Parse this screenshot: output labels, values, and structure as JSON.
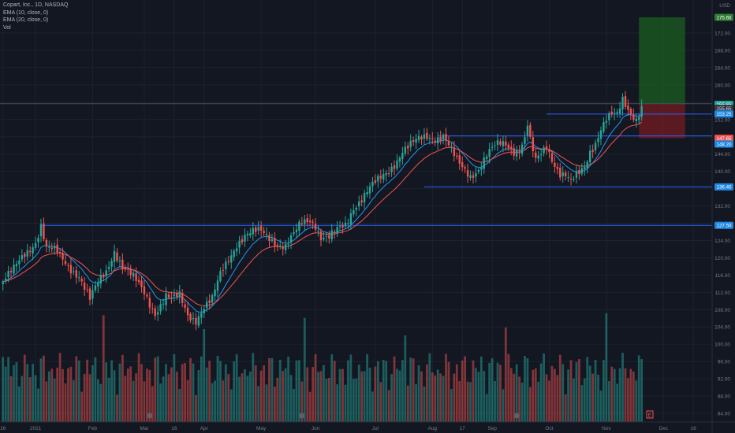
{
  "legend": {
    "symbol": "Copart, Inc., 1D, NASDAQ",
    "ema10": "EMA (10, close, 0)",
    "ema20": "EMA (20, close, 0)",
    "vol": "Vol"
  },
  "axis_currency": "USD",
  "colors": {
    "background": "#131722",
    "up": "#26a69a",
    "down": "#ef5350",
    "ema10": "#2196f3",
    "ema20": "#ef5350",
    "level_line": "#2962ff",
    "grid": "#1e222d",
    "axis_text": "#787b86"
  },
  "chart_data": {
    "type": "candlestick",
    "title": "Copart, Inc., 1D, NASDAQ",
    "ylim": [
      82,
      180
    ],
    "yticks": [
      84,
      88,
      92,
      96,
      100,
      104,
      108,
      112,
      116,
      120,
      124,
      128,
      132,
      136,
      140,
      144,
      148,
      152,
      156,
      160,
      164,
      168,
      172
    ],
    "xticks": [
      {
        "label": "16",
        "i": 0
      },
      {
        "label": "2021",
        "i": 12
      },
      {
        "label": "Feb",
        "i": 33
      },
      {
        "label": "Mar",
        "i": 52
      },
      {
        "label": "16",
        "i": 63
      },
      {
        "label": "Apr",
        "i": 74
      },
      {
        "label": "May",
        "i": 95
      },
      {
        "label": "Jun",
        "i": 115
      },
      {
        "label": "Jul",
        "i": 137
      },
      {
        "label": "Aug",
        "i": 158
      },
      {
        "label": "17",
        "i": 169
      },
      {
        "label": "Sep",
        "i": 180
      },
      {
        "label": "Oct",
        "i": 201
      },
      {
        "label": "Nov",
        "i": 222
      },
      {
        "label": "Dec",
        "i": 243
      },
      {
        "label": "16",
        "i": 254
      }
    ],
    "waypoints": [
      [
        0,
        114.5
      ],
      [
        4,
        117
      ],
      [
        8,
        121
      ],
      [
        12,
        124
      ],
      [
        14,
        127.5
      ],
      [
        16,
        122
      ],
      [
        18,
        121.5
      ],
      [
        20,
        121
      ],
      [
        23,
        119
      ],
      [
        28,
        116
      ],
      [
        32,
        110
      ],
      [
        35,
        114
      ],
      [
        38,
        117
      ],
      [
        41,
        122
      ],
      [
        44,
        118
      ],
      [
        48,
        115
      ],
      [
        52,
        112
      ],
      [
        56,
        107.5
      ],
      [
        60,
        111
      ],
      [
        62,
        110
      ],
      [
        65,
        111
      ],
      [
        68,
        107
      ],
      [
        71,
        106
      ],
      [
        74,
        108.5
      ],
      [
        77,
        110
      ],
      [
        80,
        116
      ],
      [
        83,
        120
      ],
      [
        86,
        123.5
      ],
      [
        89,
        125
      ],
      [
        92,
        125.5
      ],
      [
        95,
        126
      ],
      [
        98,
        125
      ],
      [
        101,
        123.5
      ],
      [
        104,
        122.5
      ],
      [
        107,
        125
      ],
      [
        110,
        128
      ],
      [
        113,
        129
      ],
      [
        115,
        128
      ],
      [
        117,
        125
      ],
      [
        120,
        124.5
      ],
      [
        123,
        126
      ],
      [
        126,
        127.5
      ],
      [
        129,
        132
      ],
      [
        132,
        134
      ],
      [
        135,
        136
      ],
      [
        138,
        137.5
      ],
      [
        141,
        139.5
      ],
      [
        144,
        142
      ],
      [
        147,
        145
      ],
      [
        150,
        146
      ],
      [
        153,
        147
      ],
      [
        156,
        148
      ],
      [
        159,
        148
      ],
      [
        162,
        148.5
      ],
      [
        164,
        146
      ],
      [
        167,
        142
      ],
      [
        169,
        140.5
      ],
      [
        172,
        139
      ],
      [
        175,
        141
      ],
      [
        178,
        144
      ],
      [
        181,
        145.5
      ],
      [
        183,
        146
      ],
      [
        185,
        146
      ],
      [
        188,
        145
      ],
      [
        190,
        145.5
      ],
      [
        192,
        148
      ],
      [
        193,
        151
      ],
      [
        194,
        147
      ],
      [
        196,
        142
      ],
      [
        198,
        143.5
      ],
      [
        200,
        145.5
      ],
      [
        202,
        143
      ],
      [
        204,
        141
      ],
      [
        205,
        140
      ],
      [
        207,
        139.5
      ],
      [
        209,
        137.5
      ],
      [
        211,
        138.5
      ],
      [
        212,
        139
      ],
      [
        214,
        140.5
      ],
      [
        216,
        144.5
      ],
      [
        218,
        147
      ],
      [
        220,
        150.5
      ],
      [
        222,
        152.5
      ],
      [
        224,
        153
      ],
      [
        226,
        152.5
      ],
      [
        228,
        156
      ],
      [
        230,
        154
      ],
      [
        232,
        153
      ],
      [
        233,
        152.5
      ],
      [
        235,
        155.5
      ]
    ],
    "volumes": [
      {
        "i": 54,
        "v": 1.0,
        "event": "dividend"
      },
      {
        "i": 110,
        "v": 1.0,
        "event": "dividend"
      },
      {
        "i": 189,
        "v": 1.0,
        "event": "dividend"
      }
    ],
    "ema_series": [
      {
        "name": "EMA (10, close, 0)",
        "period": 10,
        "color": "#2196f3"
      },
      {
        "name": "EMA (20, close, 0)",
        "period": 20,
        "color": "#ef5350"
      }
    ],
    "horizontal_levels": [
      {
        "value": 153.25,
        "start_i": 200
      },
      {
        "value": 148.2,
        "start_i": 160
      },
      {
        "value": 136.4,
        "start_i": 155
      },
      {
        "value": 127.5,
        "start_i": 14
      }
    ],
    "horizontal_levels_display": [
      "153.25",
      "148.20",
      "136.40",
      "127.50"
    ],
    "position": {
      "start_i": 234,
      "end_i": 251,
      "entry": 155.65,
      "target": 175.65,
      "stop": 147.65
    },
    "price_labels": {
      "target": "175.65",
      "entry": "155.65",
      "last": "155.65",
      "level1": "153.25",
      "stop": "147.65",
      "level2": "148.20",
      "level3": "136.40",
      "level4": "127.50"
    },
    "earnings_marker": "E"
  }
}
